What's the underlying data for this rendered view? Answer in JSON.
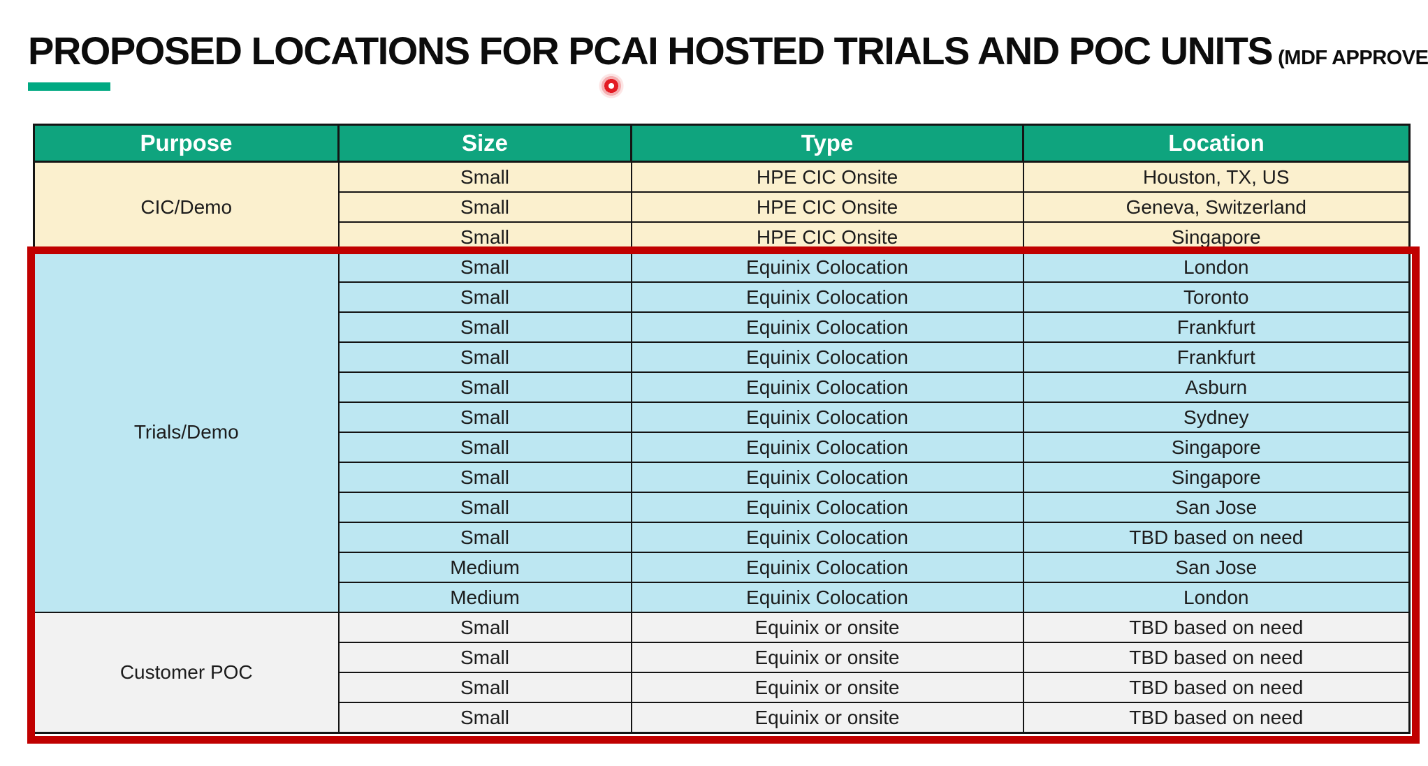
{
  "title": {
    "main": "PROPOSED LOCATIONS FOR PCAI HOSTED TRIALS AND POC UNITS",
    "suffix": "(MDF APPROVED)"
  },
  "table": {
    "columns": [
      "Purpose",
      "Size",
      "Type",
      "Location"
    ],
    "sections": [
      {
        "purpose": "CIC/Demo",
        "theme": "cream",
        "rows": [
          {
            "size": "Small",
            "type": "HPE CIC Onsite",
            "location": "Houston, TX, US"
          },
          {
            "size": "Small",
            "type": "HPE CIC Onsite",
            "location": "Geneva, Switzerland"
          },
          {
            "size": "Small",
            "type": "HPE CIC Onsite",
            "location": "Singapore"
          }
        ]
      },
      {
        "purpose": "Trials/Demo",
        "theme": "blue",
        "rows": [
          {
            "size": "Small",
            "type": "Equinix Colocation",
            "location": "London"
          },
          {
            "size": "Small",
            "type": "Equinix Colocation",
            "location": "Toronto"
          },
          {
            "size": "Small",
            "type": "Equinix Colocation",
            "location": "Frankfurt"
          },
          {
            "size": "Small",
            "type": "Equinix Colocation",
            "location": "Frankfurt"
          },
          {
            "size": "Small",
            "type": "Equinix Colocation",
            "location": "Asburn"
          },
          {
            "size": "Small",
            "type": "Equinix Colocation",
            "location": "Sydney"
          },
          {
            "size": "Small",
            "type": "Equinix Colocation",
            "location": "Singapore"
          },
          {
            "size": "Small",
            "type": "Equinix Colocation",
            "location": "Singapore"
          },
          {
            "size": "Small",
            "type": "Equinix Colocation",
            "location": "San Jose"
          },
          {
            "size": "Small",
            "type": "Equinix Colocation",
            "location": "TBD based on need"
          },
          {
            "size": "Medium",
            "type": "Equinix Colocation",
            "location": "San Jose"
          },
          {
            "size": "Medium",
            "type": "Equinix Colocation",
            "location": "London"
          }
        ]
      },
      {
        "purpose": "Customer POC",
        "theme": "gray",
        "rows": [
          {
            "size": "Small",
            "type": "Equinix or onsite",
            "location": "TBD based on need"
          },
          {
            "size": "Small",
            "type": "Equinix or onsite",
            "location": "TBD based on need"
          },
          {
            "size": "Small",
            "type": "Equinix or onsite",
            "location": "TBD based on need"
          },
          {
            "size": "Small",
            "type": "Equinix or onsite",
            "location": "TBD based on need"
          }
        ]
      }
    ]
  },
  "annotations": {
    "highlight_box_color": "#C00000",
    "laser_pointer_color": "#E31B23"
  },
  "colors": {
    "header_bg": "#0FA47E",
    "accent_bar": "#00A982",
    "section_cic_bg": "#FBF0CE",
    "section_trials_bg": "#BDE7F2",
    "section_poc_bg": "#F2F2F2",
    "grid_border": "#141414"
  }
}
